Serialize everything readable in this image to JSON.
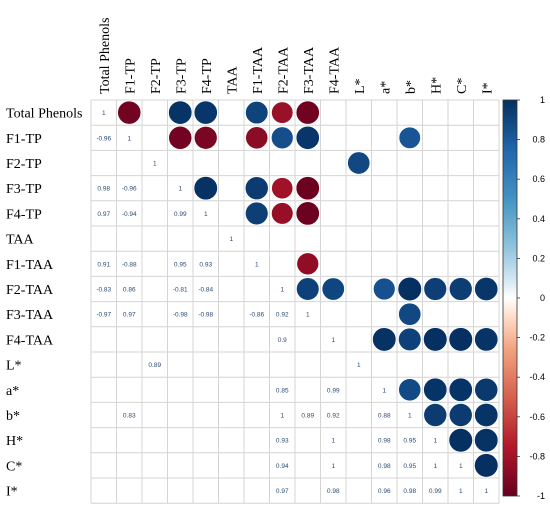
{
  "chart_data": {
    "type": "heatmap",
    "subtype": "correlation-matrix-mixed",
    "variables": [
      "Total Phenols",
      "F1-TP",
      "F2-TP",
      "F3-TP",
      "F4-TP",
      "TAA",
      "F1-TAA",
      "F2-TAA",
      "F3-TAA",
      "F4-TAA",
      "L*",
      "a*",
      "b*",
      "H*",
      "C*",
      "I*"
    ],
    "upper_style": "circle",
    "lower_style": "number",
    "diagonal_value": 1,
    "correlations": [
      {
        "row": 1,
        "col": 0,
        "value": -0.96,
        "label": "-0.96"
      },
      {
        "row": 3,
        "col": 0,
        "value": 0.98,
        "label": "0.98"
      },
      {
        "row": 3,
        "col": 1,
        "value": -0.96,
        "label": "-0.96"
      },
      {
        "row": 4,
        "col": 0,
        "value": 0.97,
        "label": "0.97"
      },
      {
        "row": 4,
        "col": 1,
        "value": -0.94,
        "label": "-0.94"
      },
      {
        "row": 4,
        "col": 3,
        "value": 0.99,
        "label": "0.99"
      },
      {
        "row": 6,
        "col": 0,
        "value": 0.91,
        "label": "0.91"
      },
      {
        "row": 6,
        "col": 1,
        "value": -0.88,
        "label": "-0.88"
      },
      {
        "row": 6,
        "col": 3,
        "value": 0.95,
        "label": "0.95"
      },
      {
        "row": 6,
        "col": 4,
        "value": 0.93,
        "label": "0.93"
      },
      {
        "row": 7,
        "col": 0,
        "value": -0.83,
        "label": "-0.83"
      },
      {
        "row": 7,
        "col": 1,
        "value": 0.86,
        "label": "0.86"
      },
      {
        "row": 7,
        "col": 3,
        "value": -0.81,
        "label": "-0.81"
      },
      {
        "row": 7,
        "col": 4,
        "value": -0.84,
        "label": "-0.84"
      },
      {
        "row": 8,
        "col": 0,
        "value": -0.97,
        "label": "-0.97"
      },
      {
        "row": 8,
        "col": 1,
        "value": 0.97,
        "label": "0.97"
      },
      {
        "row": 8,
        "col": 3,
        "value": -0.98,
        "label": "-0.98"
      },
      {
        "row": 8,
        "col": 4,
        "value": -0.98,
        "label": "-0.98"
      },
      {
        "row": 8,
        "col": 6,
        "value": -0.86,
        "label": "-0.86"
      },
      {
        "row": 8,
        "col": 7,
        "value": 0.92,
        "label": "0.92"
      },
      {
        "row": 9,
        "col": 7,
        "value": 0.9,
        "label": "0.9"
      },
      {
        "row": 10,
        "col": 2,
        "value": 0.89,
        "label": "0.89"
      },
      {
        "row": 11,
        "col": 7,
        "value": 0.85,
        "label": "0.85"
      },
      {
        "row": 11,
        "col": 9,
        "value": 0.99,
        "label": "0.99"
      },
      {
        "row": 12,
        "col": 1,
        "value": 0.83,
        "label": "0.83"
      },
      {
        "row": 12,
        "col": 7,
        "value": 1,
        "label": "1"
      },
      {
        "row": 12,
        "col": 8,
        "value": 0.89,
        "label": "0.89"
      },
      {
        "row": 12,
        "col": 9,
        "value": 0.92,
        "label": "0.92"
      },
      {
        "row": 12,
        "col": 11,
        "value": 0.88,
        "label": "0.88"
      },
      {
        "row": 13,
        "col": 7,
        "value": 0.93,
        "label": "0.93"
      },
      {
        "row": 13,
        "col": 9,
        "value": 1,
        "label": "1"
      },
      {
        "row": 13,
        "col": 11,
        "value": 0.98,
        "label": "0.98"
      },
      {
        "row": 13,
        "col": 12,
        "value": 0.95,
        "label": "0.95"
      },
      {
        "row": 14,
        "col": 7,
        "value": 0.94,
        "label": "0.94"
      },
      {
        "row": 14,
        "col": 9,
        "value": 1,
        "label": "1"
      },
      {
        "row": 14,
        "col": 11,
        "value": 0.98,
        "label": "0.98"
      },
      {
        "row": 14,
        "col": 12,
        "value": 0.95,
        "label": "0.95"
      },
      {
        "row": 14,
        "col": 13,
        "value": 1,
        "label": "1"
      },
      {
        "row": 15,
        "col": 7,
        "value": 0.97,
        "label": "0.97"
      },
      {
        "row": 15,
        "col": 9,
        "value": 0.98,
        "label": "0.98"
      },
      {
        "row": 15,
        "col": 11,
        "value": 0.96,
        "label": "0.96"
      },
      {
        "row": 15,
        "col": 12,
        "value": 0.98,
        "label": "0.98"
      },
      {
        "row": 15,
        "col": 13,
        "value": 0.99,
        "label": "0.99"
      },
      {
        "row": 15,
        "col": 14,
        "value": 1,
        "label": "1"
      },
      {
        "row": 15,
        "col": 15,
        "value": 1,
        "label": "1"
      }
    ],
    "colorbar": {
      "ticks": [
        "1",
        "0.8",
        "0.6",
        "0.4",
        "0.2",
        "0",
        "-0.2",
        "-0.4",
        "-0.6",
        "-0.8",
        "-1"
      ],
      "range": [
        -1,
        1
      ],
      "stops": [
        {
          "value": -1,
          "color": "#67001F"
        },
        {
          "value": -0.75,
          "color": "#B2182B"
        },
        {
          "value": -0.5,
          "color": "#D6604D"
        },
        {
          "value": -0.25,
          "color": "#F4A582"
        },
        {
          "value": -0.1,
          "color": "#FDDBC7"
        },
        {
          "value": 0,
          "color": "#FFFFFF"
        },
        {
          "value": 0.1,
          "color": "#D1E5F0"
        },
        {
          "value": 0.25,
          "color": "#92C5DE"
        },
        {
          "value": 0.5,
          "color": "#4393C3"
        },
        {
          "value": 0.75,
          "color": "#2166AC"
        },
        {
          "value": 1,
          "color": "#053061"
        }
      ]
    },
    "number_text_color": "#2b4a72",
    "grid_color": "#d4d4d4"
  }
}
